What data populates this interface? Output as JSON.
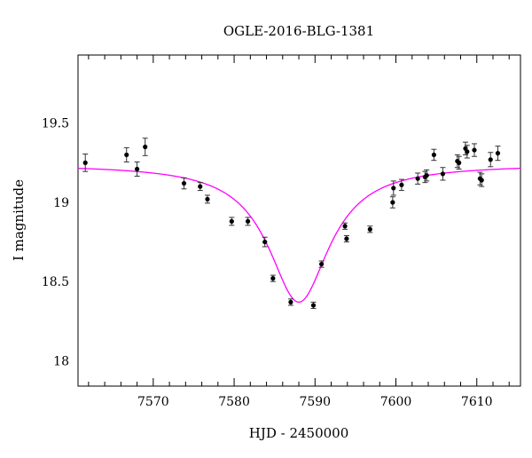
{
  "chart_data": {
    "type": "scatter",
    "title": "OGLE-2016-BLG-1381",
    "xlabel": "HJD - 2450000",
    "ylabel": "I magnitude",
    "xlim": [
      7560.7,
      7615.4
    ],
    "ylim": [
      19.93,
      17.84
    ],
    "y_inverted": true,
    "grid": false,
    "x_ticks": [
      7570,
      7580,
      7590,
      7600,
      7610
    ],
    "x_tick_labels": [
      "7570",
      "7580",
      "7590",
      "7600",
      "7610"
    ],
    "y_ticks": [
      18,
      18.5,
      19,
      19.5
    ],
    "y_tick_labels": [
      "18",
      "18.5",
      "19",
      "19.5"
    ],
    "colors": {
      "model": "#ff00ff",
      "points": "#000000",
      "axes": "#000000"
    },
    "series": [
      {
        "kind": "errorbar",
        "x": [
          7561.6,
          7566.7,
          7568.0,
          7569.0,
          7573.8,
          7575.8,
          7576.7,
          7579.7,
          7581.7,
          7583.8,
          7584.8,
          7587.0,
          7589.8,
          7590.8,
          7593.7,
          7593.9,
          7596.8,
          7599.6,
          7599.7,
          7600.7,
          7602.7,
          7603.6,
          7603.8,
          7604.7,
          7605.8,
          7607.6,
          7607.8,
          7608.6,
          7608.8,
          7609.7,
          7610.4,
          7610.6,
          7611.7,
          7612.6
        ],
        "y": [
          19.25,
          19.3,
          19.21,
          19.35,
          19.12,
          19.1,
          19.02,
          18.88,
          18.88,
          18.75,
          18.52,
          18.37,
          18.35,
          18.61,
          18.85,
          18.77,
          18.83,
          19.0,
          19.09,
          19.11,
          19.15,
          19.16,
          19.17,
          19.3,
          19.18,
          19.26,
          19.25,
          19.34,
          19.32,
          19.33,
          19.15,
          19.14,
          19.27,
          19.31
        ],
        "err": [
          0.055,
          0.045,
          0.045,
          0.055,
          0.035,
          0.025,
          0.025,
          0.025,
          0.025,
          0.03,
          0.02,
          0.02,
          0.02,
          0.02,
          0.02,
          0.02,
          0.02,
          0.035,
          0.045,
          0.035,
          0.035,
          0.035,
          0.035,
          0.035,
          0.04,
          0.04,
          0.04,
          0.04,
          0.04,
          0.04,
          0.04,
          0.04,
          0.045,
          0.045
        ]
      },
      {
        "kind": "model-curve",
        "t0": 7588.0,
        "peak_mag": 18.37,
        "base_mag": 19.24,
        "halfwidth": 3.8
      }
    ]
  }
}
